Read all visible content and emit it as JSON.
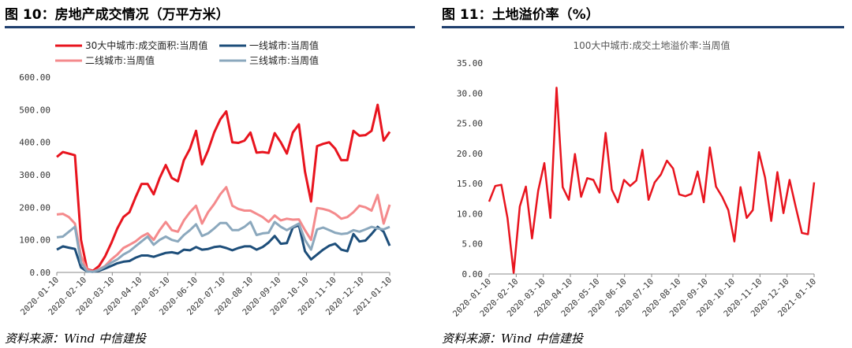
{
  "left_panel": {
    "title": "图 10：房地产成交情况（万平方米）",
    "source": "资料来源：Wind 中信建投"
  },
  "right_panel": {
    "title": "图 11：土地溢价率（%）",
    "source": "资料来源：Wind 中信建投"
  },
  "chart_data": [
    {
      "type": "line",
      "title": "",
      "ylim": [
        0,
        600
      ],
      "yticks": [
        "0.00",
        "100.00",
        "200.00",
        "300.00",
        "400.00",
        "500.00",
        "600.00"
      ],
      "xticks": [
        "2020-01-10",
        "2020-02-10",
        "2020-03-10",
        "2020-04-10",
        "2020-05-10",
        "2020-06-10",
        "2020-07-10",
        "2020-08-10",
        "2020-09-10",
        "2020-10-10",
        "2020-11-10",
        "2020-12-10",
        "2021-01-10"
      ],
      "legend_position": "top",
      "series": [
        {
          "name": "30大中城市:成交面积:当周值",
          "color": "#e8141e",
          "width": 3,
          "values": [
            355,
            370,
            365,
            360,
            100,
            10,
            5,
            20,
            50,
            90,
            135,
            170,
            185,
            230,
            272,
            272,
            240,
            290,
            330,
            290,
            280,
            345,
            380,
            435,
            332,
            375,
            430,
            470,
            495,
            400,
            398,
            405,
            430,
            368,
            370,
            367,
            428,
            400,
            365,
            430,
            455,
            310,
            218,
            388,
            395,
            400,
            380,
            345,
            345,
            435,
            420,
            422,
            435,
            515,
            405,
            432
          ]
        },
        {
          "name": "一线城市:当周值",
          "color": "#1d4e7a",
          "width": 3,
          "values": [
            70,
            80,
            76,
            72,
            15,
            3,
            2,
            5,
            12,
            20,
            28,
            33,
            35,
            45,
            52,
            52,
            48,
            54,
            60,
            62,
            58,
            70,
            68,
            78,
            70,
            72,
            78,
            80,
            75,
            68,
            75,
            80,
            80,
            70,
            78,
            92,
            112,
            88,
            90,
            138,
            145,
            65,
            40,
            55,
            70,
            82,
            88,
            70,
            65,
            118,
            95,
            98,
            118,
            140,
            125,
            82
          ]
        },
        {
          "name": "二线城市:当周值",
          "color": "#f48a8c",
          "width": 3,
          "values": [
            178,
            180,
            170,
            150,
            50,
            8,
            3,
            10,
            20,
            40,
            55,
            75,
            85,
            95,
            110,
            120,
            100,
            130,
            155,
            130,
            125,
            160,
            185,
            205,
            150,
            185,
            210,
            240,
            262,
            205,
            195,
            190,
            190,
            180,
            170,
            155,
            175,
            160,
            165,
            162,
            163,
            130,
            100,
            198,
            195,
            190,
            180,
            165,
            170,
            185,
            205,
            200,
            190,
            238,
            150,
            208
          ]
        },
        {
          "name": "三线城市:当周值",
          "color": "#8ba8bd",
          "width": 3,
          "values": [
            108,
            110,
            125,
            140,
            30,
            3,
            2,
            8,
            18,
            30,
            40,
            55,
            65,
            80,
            95,
            110,
            85,
            100,
            110,
            100,
            95,
            115,
            130,
            148,
            112,
            120,
            135,
            152,
            152,
            130,
            130,
            140,
            155,
            115,
            120,
            122,
            155,
            140,
            130,
            140,
            150,
            100,
            70,
            132,
            138,
            130,
            122,
            118,
            120,
            130,
            125,
            132,
            140,
            135,
            132,
            140
          ]
        }
      ]
    },
    {
      "type": "line",
      "title": "100大中城市:成交土地溢价率:当周值",
      "ylim": [
        0,
        35
      ],
      "yticks": [
        "0.00",
        "5.00",
        "10.00",
        "15.00",
        "20.00",
        "25.00",
        "30.00",
        "35.00"
      ],
      "xticks": [
        "2020-01-10",
        "2020-02-10",
        "2020-03-10",
        "2020-04-10",
        "2020-05-10",
        "2020-06-10",
        "2020-07-10",
        "2020-08-10",
        "2020-09-10",
        "2020-10-10",
        "2020-11-10",
        "2020-12-10",
        "2021-01-10"
      ],
      "series": [
        {
          "name": "100大中城市:成交土地溢价率:当周值",
          "color": "#e8141e",
          "width": 2.5,
          "values": [
            12.0,
            14.6,
            14.8,
            9.3,
            0.2,
            11.2,
            14.5,
            5.9,
            13.8,
            18.4,
            9.3,
            30.9,
            14.4,
            12.3,
            19.9,
            12.8,
            15.9,
            15.6,
            13.5,
            23.4,
            14.0,
            11.9,
            15.6,
            14.6,
            15.5,
            20.6,
            12.3,
            15.2,
            16.5,
            18.8,
            17.5,
            13.2,
            12.9,
            13.3,
            17.0,
            11.9,
            21.0,
            14.5,
            12.8,
            10.6,
            5.4,
            14.4,
            9.3,
            10.6,
            20.2,
            16.0,
            8.8,
            16.9,
            10.1,
            15.6,
            11.1,
            6.8,
            6.6,
            15.2
          ]
        }
      ]
    }
  ]
}
